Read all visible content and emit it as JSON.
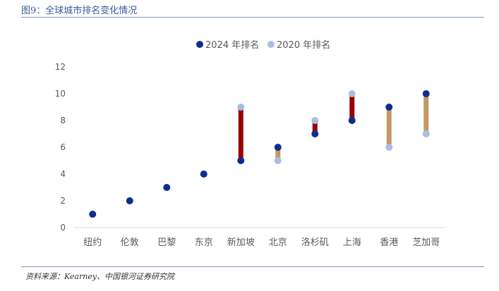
{
  "figure": {
    "title": "图9：全球城市排名变化情况",
    "source": "资料来源：Kearney、中国银河证券研究院"
  },
  "colors": {
    "series_2024": "#0b2f8f",
    "series_2020": "#a9bde3",
    "worse": "#9b0000",
    "better": "#c39a66",
    "rule": "#8196c6",
    "axis": "#d9d9d9",
    "text": "#595959"
  },
  "chart_data": {
    "type": "scatter",
    "categories": [
      "纽约",
      "伦敦",
      "巴黎",
      "东京",
      "新加坡",
      "北京",
      "洛杉矶",
      "上海",
      "香港",
      "芝加哥"
    ],
    "series": [
      {
        "name": "2024 年排名",
        "values": [
          1,
          2,
          3,
          4,
          5,
          6,
          7,
          8,
          9,
          10
        ]
      },
      {
        "name": "2020 年排名",
        "values": [
          1,
          2,
          3,
          4,
          9,
          5,
          8,
          10,
          6,
          7
        ]
      }
    ],
    "ylim": [
      0,
      12
    ],
    "yticks": [
      "0",
      "2",
      "4",
      "6",
      "8",
      "10",
      "12"
    ],
    "legend_position": "top-center",
    "grid": false
  }
}
